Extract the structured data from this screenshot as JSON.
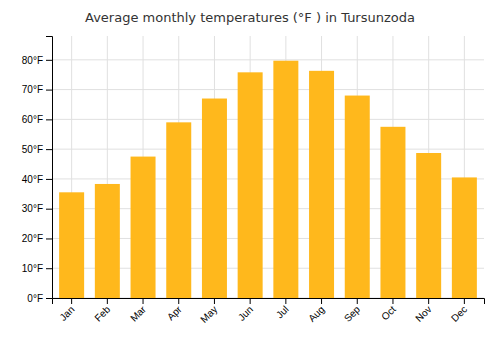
{
  "chart_data": {
    "type": "bar",
    "title": "Average monthly temperatures (°F ) in Tursunzoda",
    "categories": [
      "Jan",
      "Feb",
      "Mar",
      "Apr",
      "May",
      "Jun",
      "Jul",
      "Aug",
      "Sep",
      "Oct",
      "Nov",
      "Dec"
    ],
    "values": [
      35.5,
      38.3,
      47.5,
      59.0,
      67.0,
      75.8,
      79.7,
      76.3,
      68.0,
      57.5,
      48.7,
      40.5
    ],
    "color": "#FFB81C",
    "ylim": [
      0,
      88
    ],
    "yticks": [
      {
        "value": 0,
        "label": "0°F"
      },
      {
        "value": 10,
        "label": "10°F"
      },
      {
        "value": 20,
        "label": "20°F"
      },
      {
        "value": 30,
        "label": "30°F"
      },
      {
        "value": 40,
        "label": "40°F"
      },
      {
        "value": 50,
        "label": "50°F"
      },
      {
        "value": 60,
        "label": "60°F"
      },
      {
        "value": 70,
        "label": "70°F"
      },
      {
        "value": 80,
        "label": "80°F"
      }
    ],
    "grid": true
  }
}
